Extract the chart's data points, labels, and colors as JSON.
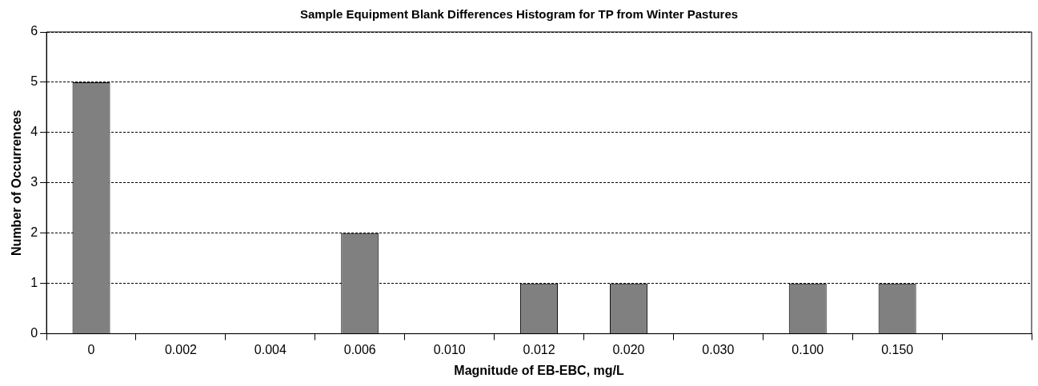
{
  "chart_data": {
    "type": "bar",
    "title": "Sample Equipment Blank Differences Histogram for TP from Winter Pastures",
    "xlabel": "Magnitude of EB-EBC, mg/L",
    "ylabel": "Number of Occurrences",
    "categories": [
      "0",
      "0.002",
      "0.004",
      "0.006",
      "0.010",
      "0.012",
      "0.020",
      "0.030",
      "0.100",
      "0.150",
      null
    ],
    "values": [
      5,
      0,
      0,
      2,
      0,
      1,
      1,
      0,
      1,
      1,
      0
    ],
    "color": "#808080",
    "ylim": [
      0,
      6
    ],
    "yticks": [
      0,
      1,
      2,
      3,
      4,
      5,
      6
    ],
    "grid": "y",
    "legend": false
  }
}
